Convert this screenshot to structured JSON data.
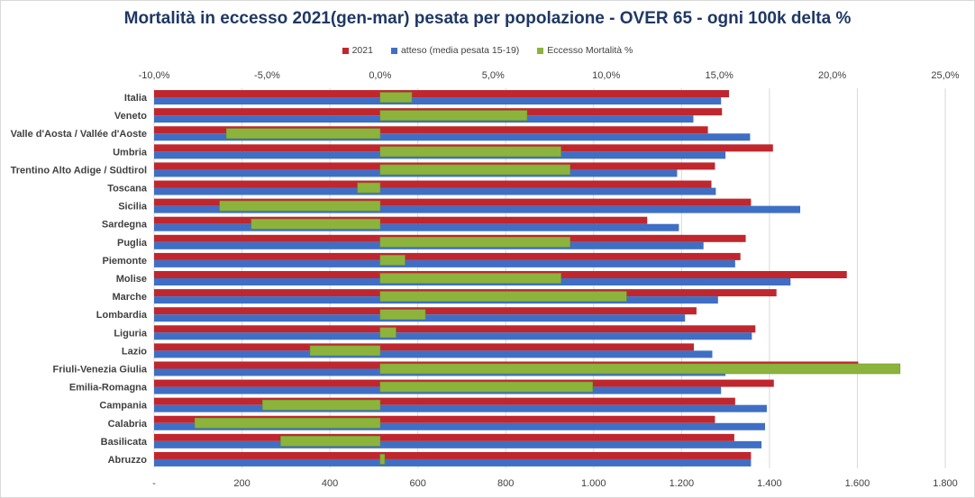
{
  "chart_data": {
    "type": "bar",
    "orientation": "horizontal",
    "title": "Mortalità  in eccesso 2021(gen-mar) pesata per popolazione  - OVER 65 - ogni 100k delta %",
    "categories": [
      "Italia",
      "Veneto",
      "Valle d'Aosta / Vallée d'Aoste",
      "Umbria",
      "Trentino Alto Adige / Südtirol",
      "Toscana",
      "Sicilia",
      "Sardegna",
      "Puglia",
      "Piemonte",
      "Molise",
      "Marche",
      "Lombardia",
      "Liguria",
      "Lazio",
      "Friuli-Venezia Giulia",
      "Emilia-Romagna",
      "Campania",
      "Calabria",
      "Basilicata",
      "Abruzzo"
    ],
    "series": [
      {
        "name": "2021",
        "axis": "bottom",
        "color": "#c0262d",
        "values": [
          1308,
          1292,
          1260,
          1408,
          1276,
          1268,
          1358,
          1122,
          1346,
          1334,
          1576,
          1416,
          1234,
          1368,
          1228,
          1602,
          1410,
          1322,
          1276,
          1320,
          1358
        ]
      },
      {
        "name": "atteso (media pesata 15-19)",
        "axis": "bottom",
        "color": "#3f6fc5",
        "values": [
          1290,
          1227,
          1356,
          1300,
          1190,
          1278,
          1470,
          1194,
          1250,
          1322,
          1448,
          1283,
          1208,
          1360,
          1270,
          1300,
          1290,
          1394,
          1390,
          1382,
          1358
        ]
      },
      {
        "name": "Eccesso Mortalità %",
        "axis": "top",
        "color": "#8cb43c",
        "values": [
          1.4,
          6.5,
          -6.8,
          8.0,
          8.4,
          -1.0,
          -7.1,
          -5.7,
          8.4,
          1.1,
          8.0,
          10.9,
          2.0,
          0.7,
          -3.1,
          23.0,
          9.4,
          -5.2,
          -8.2,
          -4.4,
          0.2
        ]
      }
    ],
    "axes": {
      "bottom": {
        "min": 0,
        "max": 1800,
        "ticks": [
          0,
          200,
          400,
          600,
          800,
          1000,
          1200,
          1400,
          1600,
          1800
        ],
        "tick_labels": [
          "-",
          "200",
          "400",
          "600",
          "800",
          "1.000",
          "1.200",
          "1.400",
          "1.600",
          "1.800"
        ]
      },
      "top": {
        "min": -10,
        "max": 25,
        "ticks": [
          -10,
          -5,
          0,
          5,
          10,
          15,
          20,
          25
        ],
        "tick_labels": [
          "-10,0%",
          "-5,0%",
          "0,0%",
          "5,0%",
          "10,0%",
          "15,0%",
          "20,0%",
          "25,0%"
        ]
      }
    },
    "gridlines": "vertical",
    "legend": "top"
  }
}
